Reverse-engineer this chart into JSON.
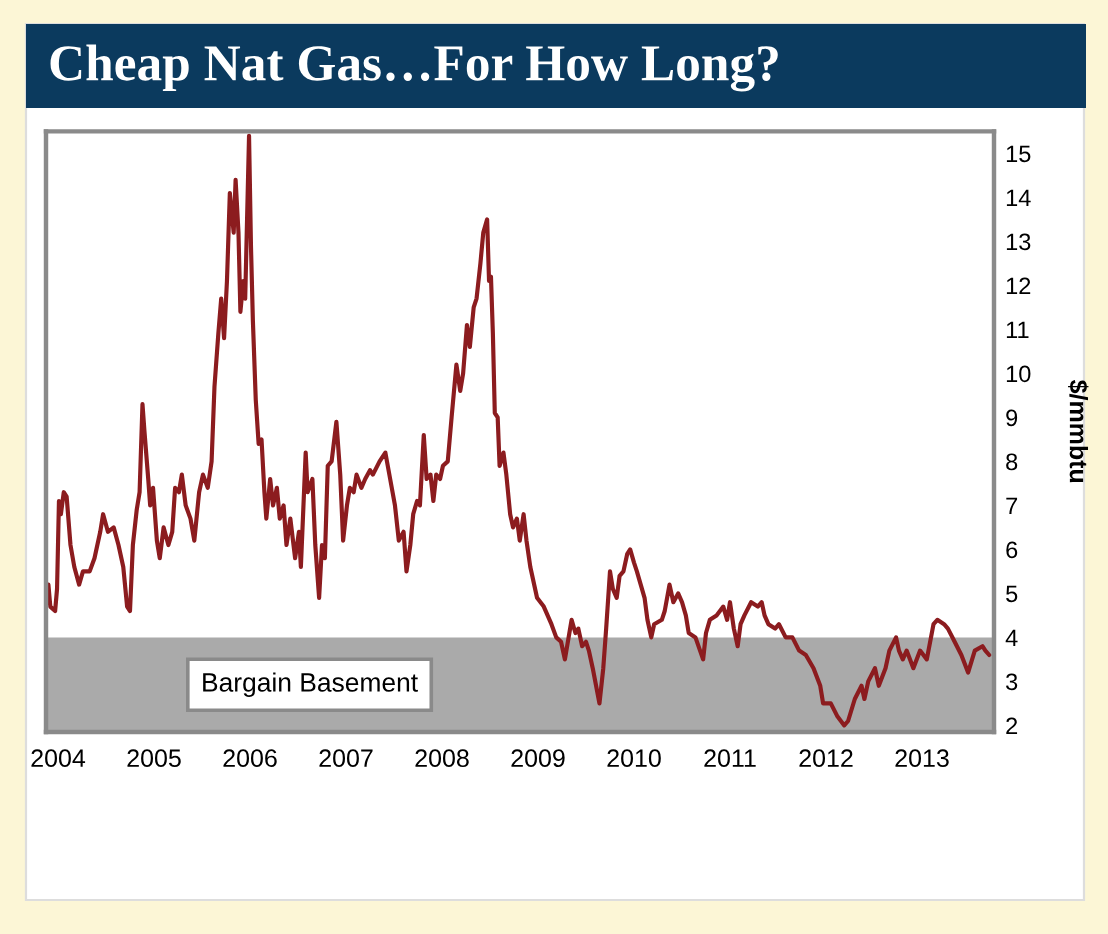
{
  "chart_data": {
    "type": "line",
    "title": "Cheap Nat Gas…For How Long?",
    "ylabel": "$/mmbtu",
    "x": [
      2003.9,
      2003.92,
      2003.97,
      2003.99,
      2004.01,
      2004.03,
      2004.06,
      2004.09,
      2004.13,
      2004.17,
      2004.22,
      2004.26,
      2004.33,
      2004.38,
      2004.44,
      2004.47,
      2004.52,
      2004.58,
      2004.63,
      2004.68,
      2004.72,
      2004.75,
      2004.78,
      2004.82,
      2004.85,
      2004.88,
      2004.9,
      2004.94,
      2004.96,
      2004.99,
      2005.03,
      2005.06,
      2005.1,
      2005.15,
      2005.19,
      2005.22,
      2005.26,
      2005.29,
      2005.33,
      2005.38,
      2005.42,
      2005.47,
      2005.51,
      2005.56,
      2005.6,
      2005.63,
      2005.67,
      2005.7,
      2005.73,
      2005.76,
      2005.79,
      2005.83,
      2005.85,
      2005.88,
      2005.9,
      2005.93,
      2005.95,
      2005.99,
      2006.01,
      2006.03,
      2006.06,
      2006.09,
      2006.12,
      2006.15,
      2006.17,
      2006.21,
      2006.24,
      2006.28,
      2006.31,
      2006.35,
      2006.38,
      2006.42,
      2006.47,
      2006.51,
      2006.53,
      2006.58,
      2006.6,
      2006.65,
      2006.68,
      2006.72,
      2006.75,
      2006.78,
      2006.81,
      2006.85,
      2006.9,
      2006.94,
      2006.97,
      2007.01,
      2007.04,
      2007.08,
      2007.11,
      2007.16,
      2007.2,
      2007.25,
      2007.28,
      2007.35,
      2007.41,
      2007.46,
      2007.51,
      2007.55,
      2007.6,
      2007.63,
      2007.67,
      2007.7,
      2007.74,
      2007.77,
      2007.81,
      2007.84,
      2007.88,
      2007.91,
      2007.94,
      2007.98,
      2008.01,
      2008.06,
      2008.1,
      2008.15,
      2008.19,
      2008.22,
      2008.26,
      2008.29,
      2008.33,
      2008.36,
      2008.4,
      2008.43,
      2008.47,
      2008.49,
      2008.51,
      2008.53,
      2008.55,
      2008.58,
      2008.6,
      2008.64,
      2008.67,
      2008.71,
      2008.74,
      2008.78,
      2008.81,
      2008.85,
      2008.88,
      2008.92,
      2008.99,
      2009.06,
      2009.14,
      2009.19,
      2009.24,
      2009.28,
      2009.35,
      2009.39,
      2009.42,
      2009.46,
      2009.5,
      2009.53,
      2009.57,
      2009.64,
      2009.68,
      2009.71,
      2009.75,
      2009.78,
      2009.82,
      2009.85,
      2009.89,
      2009.93,
      2009.96,
      2010.0,
      2010.03,
      2010.07,
      2010.11,
      2010.14,
      2010.18,
      2010.21,
      2010.29,
      2010.32,
      2010.37,
      2010.41,
      2010.46,
      2010.5,
      2010.54,
      2010.57,
      2010.64,
      2010.72,
      2010.75,
      2010.79,
      2010.86,
      2010.93,
      2010.97,
      2011.0,
      2011.04,
      2011.08,
      2011.11,
      2011.15,
      2011.22,
      2011.29,
      2011.33,
      2011.36,
      2011.4,
      2011.47,
      2011.51,
      2011.58,
      2011.65,
      2011.72,
      2011.79,
      2011.87,
      2011.94,
      2011.97,
      2012.05,
      2012.12,
      2012.19,
      2012.23,
      2012.3,
      2012.37,
      2012.4,
      2012.44,
      2012.51,
      2012.55,
      2012.62,
      2012.66,
      2012.73,
      2012.76,
      2012.8,
      2012.84,
      2012.91,
      2012.98,
      2013.05,
      2013.12,
      2013.16,
      2013.23,
      2013.27,
      2013.34,
      2013.41,
      2013.48,
      2013.55,
      2013.63,
      2013.66,
      2013.7
    ],
    "series": [
      {
        "color": "#8c1c1f",
        "values": [
          5.2,
          4.7,
          4.6,
          5.1,
          7.1,
          6.8,
          7.3,
          7.2,
          6.1,
          5.6,
          5.2,
          5.5,
          5.5,
          5.8,
          6.4,
          6.8,
          6.4,
          6.5,
          6.1,
          5.6,
          4.7,
          4.6,
          6.1,
          6.9,
          7.3,
          9.3,
          8.7,
          7.6,
          7.0,
          7.4,
          6.2,
          5.8,
          6.5,
          6.1,
          6.4,
          7.4,
          7.3,
          7.7,
          7.0,
          6.7,
          6.2,
          7.3,
          7.7,
          7.4,
          8.0,
          9.7,
          10.9,
          11.7,
          10.8,
          12.1,
          14.1,
          13.2,
          14.4,
          13.2,
          11.4,
          12.1,
          11.7,
          15.4,
          12.9,
          11.2,
          9.4,
          8.4,
          8.5,
          7.3,
          6.7,
          7.6,
          7.0,
          7.4,
          6.7,
          7.0,
          6.1,
          6.7,
          5.8,
          6.4,
          5.6,
          8.2,
          7.3,
          7.6,
          6.1,
          4.9,
          6.1,
          5.8,
          7.9,
          8.0,
          8.9,
          7.7,
          6.2,
          7.0,
          7.4,
          7.3,
          7.7,
          7.4,
          7.6,
          7.8,
          7.7,
          8.0,
          8.2,
          7.6,
          7.0,
          6.2,
          6.4,
          5.5,
          6.1,
          6.8,
          7.1,
          7.0,
          8.6,
          7.6,
          7.7,
          7.1,
          7.7,
          7.6,
          7.9,
          8.0,
          9.0,
          10.2,
          9.6,
          10.0,
          11.1,
          10.6,
          11.5,
          11.7,
          12.5,
          13.2,
          13.5,
          12.1,
          12.2,
          10.9,
          9.1,
          9.0,
          7.9,
          8.2,
          7.7,
          6.8,
          6.5,
          6.7,
          6.2,
          6.8,
          6.2,
          5.6,
          4.9,
          4.7,
          4.3,
          4.0,
          3.9,
          3.5,
          4.4,
          4.1,
          4.2,
          3.8,
          3.9,
          3.7,
          3.3,
          2.5,
          3.3,
          4.2,
          5.5,
          5.1,
          4.9,
          5.4,
          5.5,
          5.9,
          6.0,
          5.7,
          5.5,
          5.2,
          4.9,
          4.4,
          4.0,
          4.3,
          4.4,
          4.6,
          5.2,
          4.8,
          5.0,
          4.8,
          4.5,
          4.1,
          4.0,
          3.5,
          4.1,
          4.4,
          4.5,
          4.7,
          4.4,
          4.8,
          4.2,
          3.8,
          4.3,
          4.5,
          4.8,
          4.7,
          4.8,
          4.5,
          4.3,
          4.2,
          4.3,
          4.0,
          4.0,
          3.7,
          3.6,
          3.3,
          2.9,
          2.5,
          2.5,
          2.2,
          2.0,
          2.1,
          2.6,
          2.9,
          2.6,
          3.0,
          3.3,
          2.9,
          3.3,
          3.7,
          4.0,
          3.7,
          3.5,
          3.7,
          3.3,
          3.7,
          3.5,
          4.3,
          4.4,
          4.3,
          4.2,
          3.9,
          3.6,
          3.2,
          3.7,
          3.8,
          3.7,
          3.6
        ]
      }
    ],
    "xlim": [
      2003.875,
      2013.75
    ],
    "xticks": [
      2004,
      2005,
      2006,
      2007,
      2008,
      2009,
      2010,
      2011,
      2012,
      2013
    ],
    "ylim": [
      1.85,
      15.5
    ],
    "yticks": [
      2,
      3,
      4,
      5,
      6,
      7,
      8,
      9,
      10,
      11,
      12,
      13,
      14,
      15
    ],
    "bands": [
      {
        "axis": "y",
        "from": 1.85,
        "to": 4,
        "label": "Bargain Basement",
        "color": "#aaaaaa"
      }
    ]
  }
}
